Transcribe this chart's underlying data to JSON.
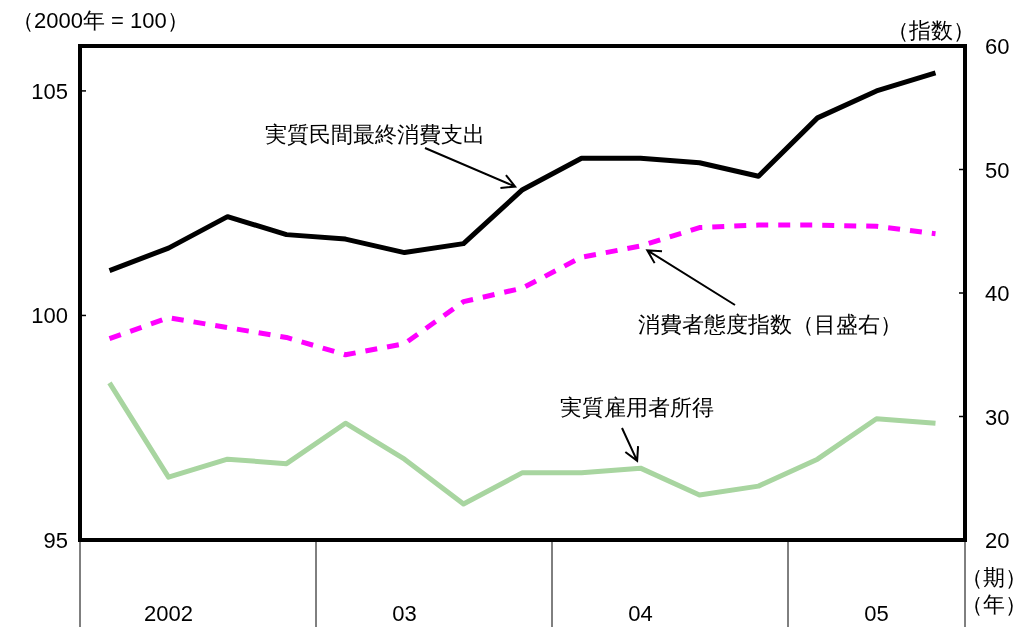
{
  "chart_data": {
    "type": "line",
    "ylabel": "（2000年 = 100）",
    "y2label": "（指数）",
    "annotations": [
      "（期）",
      "（年）"
    ],
    "categories": [
      null,
      "2002",
      null,
      null,
      null,
      "03",
      null,
      null,
      null,
      "04",
      null,
      null,
      null,
      "05",
      null
    ],
    "ylim": [
      95,
      106
    ],
    "yticks": [
      95,
      100,
      105
    ],
    "y2lim": [
      20,
      60
    ],
    "y2ticks": [
      20,
      30,
      40,
      50,
      60
    ],
    "grid": false,
    "legend": false,
    "marker": "none",
    "series": [
      {
        "name": "実質民間最終消費支出",
        "color": "#000000",
        "line_style": "solid",
        "values": [
          101.0,
          101.5,
          102.2,
          101.8,
          101.7,
          101.4,
          101.6,
          102.8,
          103.5,
          103.5,
          103.4,
          103.1,
          104.4,
          105.0,
          105.4
        ]
      },
      {
        "name": "消費者態度指数（目盛右）",
        "color": "#ff00ff",
        "line_style": "dashed",
        "axis": "y2",
        "values": [
          36.3,
          38.0,
          37.2,
          36.4,
          35.0,
          35.9,
          39.3,
          40.4,
          42.9,
          43.8,
          45.3,
          45.5,
          45.5,
          45.4,
          44.8
        ]
      },
      {
        "name": "実質雇用者所得",
        "color": "#a8d5a0",
        "line_style": "solid",
        "values": [
          98.5,
          96.4,
          96.8,
          96.7,
          97.6,
          96.8,
          95.8,
          96.5,
          96.5,
          96.6,
          96.0,
          96.2,
          96.8,
          97.7,
          97.6
        ]
      }
    ]
  }
}
